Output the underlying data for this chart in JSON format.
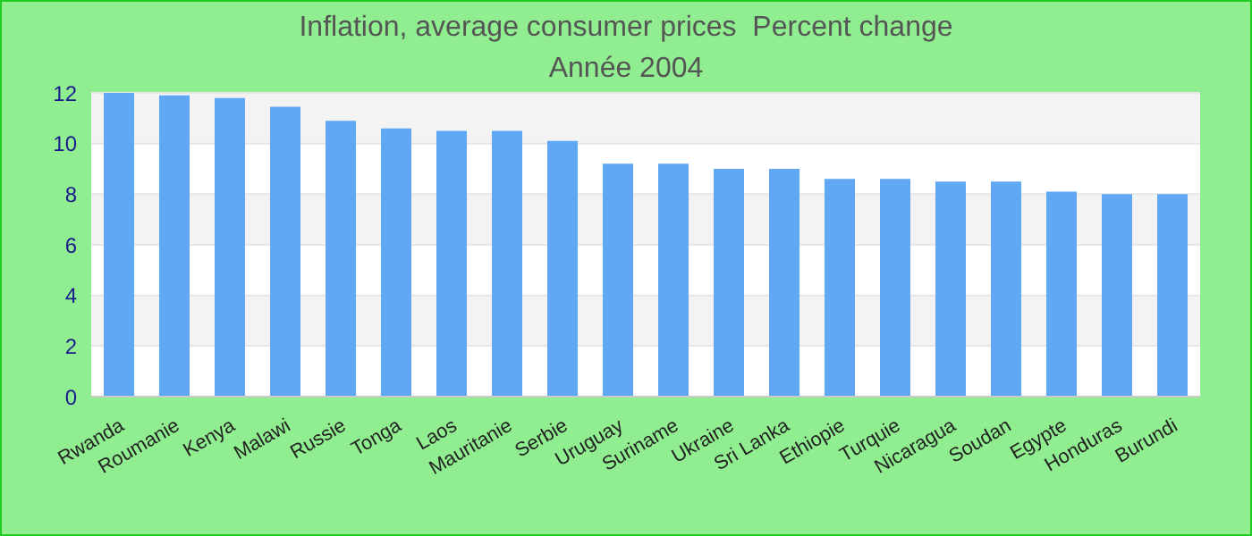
{
  "chart_data": {
    "type": "bar",
    "title": "Inflation, average consumer prices  Percent change",
    "subtitle": "Année 2004",
    "categories": [
      "Rwanda",
      "Roumanie",
      "Kenya",
      "Malawi",
      "Russie",
      "Tonga",
      "Laos",
      "Mauritanie",
      "Serbie",
      "Uruguay",
      "Suriname",
      "Ukraine",
      "Sri Lanka",
      "Ethiopie",
      "Turquie",
      "Nicaragua",
      "Soudan",
      "Egypte",
      "Honduras",
      "Burundi"
    ],
    "values": [
      12.0,
      11.9,
      11.8,
      11.45,
      10.9,
      10.6,
      10.5,
      10.5,
      10.1,
      9.2,
      9.2,
      9.0,
      9.0,
      8.6,
      8.6,
      8.5,
      8.5,
      8.1,
      8.0,
      8.0
    ],
    "color": "#60a8f4",
    "ylim": [
      0,
      12
    ],
    "yticks": [
      0,
      2,
      4,
      6,
      8,
      10,
      12
    ],
    "grid": "y"
  }
}
